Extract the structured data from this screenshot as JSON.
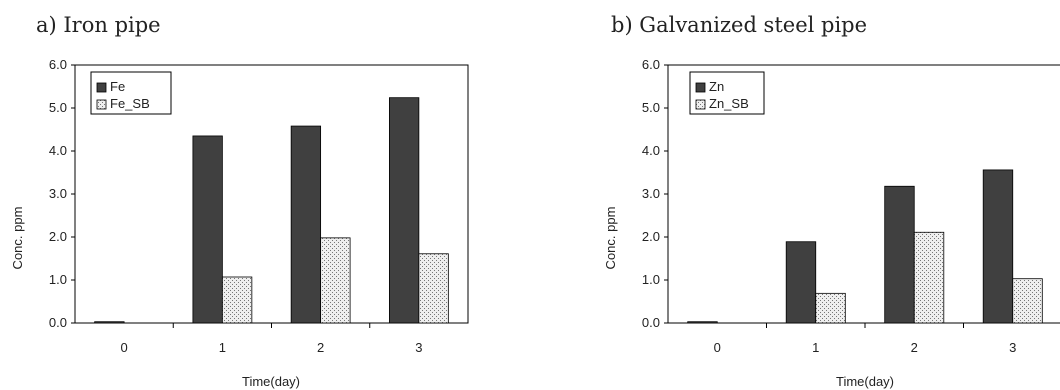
{
  "chart_data": [
    {
      "type": "bar",
      "title": "a) Iron pipe",
      "xlabel": "Time(day)",
      "ylabel": "Conc. ppm",
      "categories": [
        "0",
        "1",
        "2",
        "3"
      ],
      "ylim": [
        0,
        6
      ],
      "yticks": [
        "0.0",
        "1.0",
        "2.0",
        "3.0",
        "4.0",
        "5.0",
        "6.0"
      ],
      "legend_position": "top-left",
      "series": [
        {
          "name": "Fe",
          "values": [
            0.03,
            4.35,
            4.58,
            5.24
          ],
          "color": "#404040",
          "pattern": "solid"
        },
        {
          "name": "Fe_SB",
          "values": [
            0,
            1.07,
            1.98,
            1.61
          ],
          "color": "#e8e8e8",
          "pattern": "dots"
        }
      ]
    },
    {
      "type": "bar",
      "title": "b) Galvanized steel pipe",
      "xlabel": "Time(day)",
      "ylabel": "Conc. ppm",
      "categories": [
        "0",
        "1",
        "2",
        "3"
      ],
      "ylim": [
        0,
        6
      ],
      "yticks": [
        "0.0",
        "1.0",
        "2.0",
        "3.0",
        "4.0",
        "5.0",
        "6.0"
      ],
      "legend_position": "top-left",
      "series": [
        {
          "name": "Zn",
          "values": [
            0.03,
            1.89,
            3.18,
            3.56
          ],
          "color": "#404040",
          "pattern": "solid"
        },
        {
          "name": "Zn_SB",
          "values": [
            0,
            0.69,
            2.11,
            1.03
          ],
          "color": "#e8e8e8",
          "pattern": "dots"
        }
      ]
    }
  ]
}
